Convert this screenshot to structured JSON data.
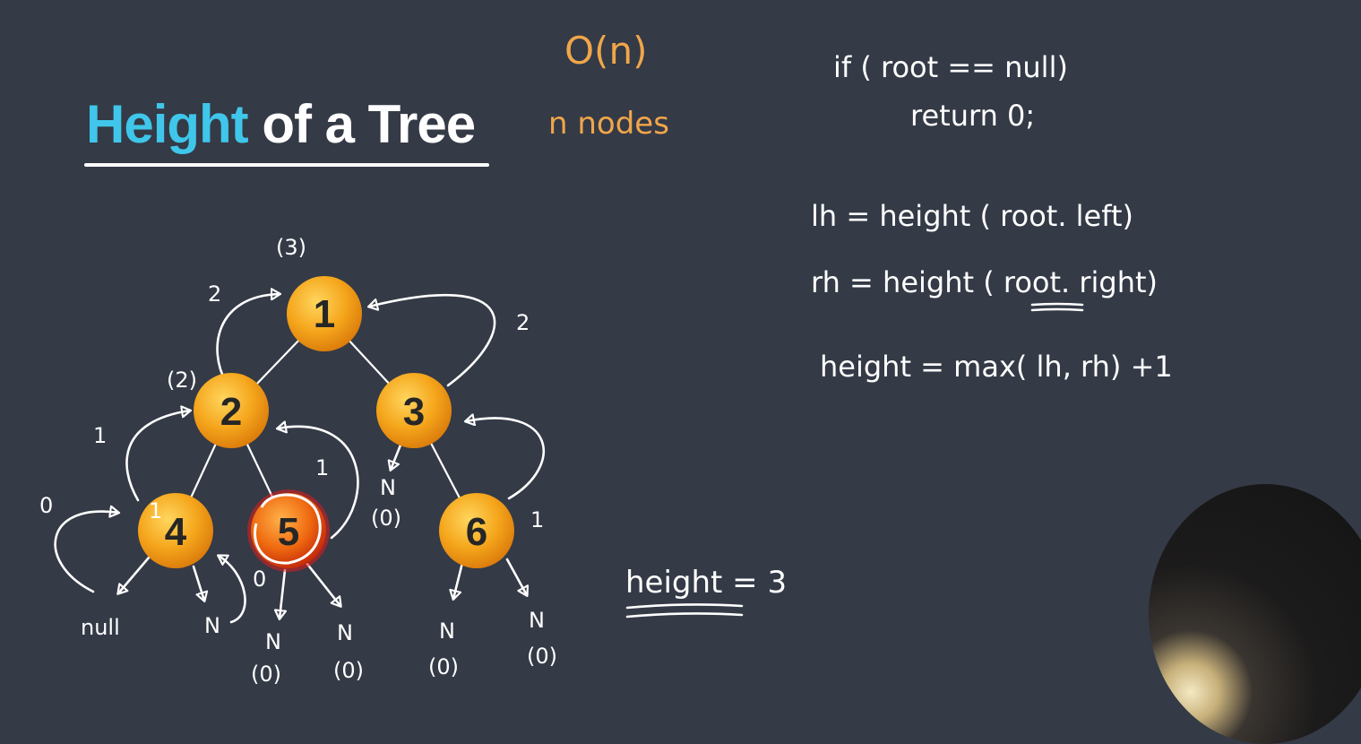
{
  "title": {
    "highlight": "Height",
    "rest": "of a Tree"
  },
  "complexity": {
    "big_o": "O(n)",
    "nodes_note": "n nodes"
  },
  "code": {
    "line1": "if ( root == null)",
    "line2": "return 0;",
    "line3": "lh = height ( root. left)",
    "line4": "rh = height ( root. right)",
    "line5": "height = max( lh, rh) +1"
  },
  "result_note": "height = 3",
  "tree": {
    "nodes": [
      {
        "label": "1"
      },
      {
        "label": "2"
      },
      {
        "label": "3"
      },
      {
        "label": "4"
      },
      {
        "label": "5",
        "highlighted": true
      },
      {
        "label": "6"
      }
    ],
    "annotations": {
      "root_height": "(3)",
      "node2_height": "(2)",
      "left_arrow_1": "2",
      "right_arrow_1": "2",
      "left_arrow_2": "1",
      "arrow_5": "1",
      "arrow_6": "1",
      "node4_inner": "1",
      "node4_left_count": "0",
      "node5_left_count": "0",
      "null_label": "null",
      "n_4r": "N",
      "n_5l": "N",
      "n_5l_val": "(0)",
      "n_5r": "N",
      "n_5r_val": "(0)",
      "n_3l": "N",
      "n_3l_val": "(0)",
      "n_6l": "N",
      "n_6l_val": "(0)",
      "n_6r": "N",
      "n_6r_val": "(0)"
    }
  },
  "colors": {
    "background": "#343a46",
    "accent": "#3fc6ea",
    "node": "#f5a61c",
    "highlight": "#e11b1b",
    "note": "#f0a64a"
  }
}
